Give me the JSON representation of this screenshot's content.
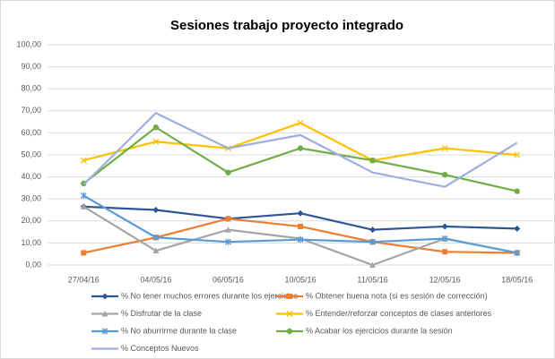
{
  "chart_data": {
    "type": "line",
    "title": "Sesiones trabajo proyecto integrado",
    "categories": [
      "27/04/16",
      "04/05/16",
      "06/05/16",
      "10/05/16",
      "11/05/16",
      "12/05/16",
      "18/05/16"
    ],
    "series": [
      {
        "name": "% No tener muchos errores durante los ejercicios",
        "color": "#2e5597",
        "marker": "diamond",
        "values": [
          26.5,
          25,
          21,
          23.5,
          16,
          17.5,
          16.5
        ]
      },
      {
        "name": "% Obtener buena nota (si es sesión de corrección)",
        "color": "#ed7d31",
        "marker": "square",
        "values": [
          5.5,
          12.5,
          21,
          17.5,
          10.5,
          6,
          5.5
        ]
      },
      {
        "name": "% Disfrutar de la clase",
        "color": "#a5a5a5",
        "marker": "triangle",
        "values": [
          26.5,
          6.5,
          16,
          12,
          0,
          12,
          5.5
        ]
      },
      {
        "name": "% Entender/reforzar conceptos de clases anteriores",
        "color": "#ffc000",
        "marker": "cross",
        "values": [
          47.5,
          56,
          53,
          64.5,
          47.5,
          53,
          50
        ]
      },
      {
        "name": "% No aburrirme durante la clase",
        "color": "#5b9bd5",
        "marker": "star",
        "values": [
          31.5,
          12.5,
          10.5,
          11.5,
          10.5,
          12,
          5.5
        ]
      },
      {
        "name": "% Acabar los ejercicios durante la sesión",
        "color": "#70ad47",
        "marker": "circle",
        "values": [
          37,
          62.5,
          42,
          53,
          47.5,
          41,
          33.5
        ]
      },
      {
        "name": "% Conceptos Nuevos",
        "color": "#9dafe0",
        "marker": "none",
        "values": [
          36.5,
          69,
          53,
          59,
          42,
          35.5,
          55.5
        ]
      }
    ],
    "ylim": [
      0,
      100
    ],
    "yticks": [
      {
        "value": 0,
        "label": "0,00"
      },
      {
        "value": 10,
        "label": "10,00"
      },
      {
        "value": 20,
        "label": "20,00"
      },
      {
        "value": 30,
        "label": "30,00"
      },
      {
        "value": 40,
        "label": "40,00"
      },
      {
        "value": 50,
        "label": "50,00"
      },
      {
        "value": 60,
        "label": "60,00"
      },
      {
        "value": 70,
        "label": "70,00"
      },
      {
        "value": 80,
        "label": "80,00"
      },
      {
        "value": 90,
        "label": "90,00"
      },
      {
        "value": 100,
        "label": "100,00"
      }
    ],
    "grid": true,
    "legend": "bottom"
  }
}
